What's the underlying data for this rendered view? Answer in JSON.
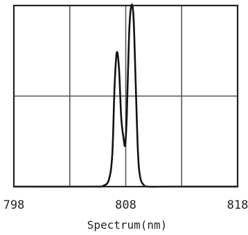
{
  "chart_data": {
    "type": "line",
    "title": "",
    "xlabel": "Spectrum(nm)",
    "ylabel": "",
    "xlim": [
      798,
      818
    ],
    "ylim": [
      0,
      1
    ],
    "x_tick_labels": [
      "798",
      "808",
      "818"
    ],
    "grid": true,
    "legend": "none",
    "series": [
      {
        "x": [
          798,
          805,
          806,
          806.5,
          806.8,
          807.0,
          807.2,
          807.4,
          807.6,
          807.8,
          807.95,
          808.1,
          808.3,
          808.5,
          808.7,
          808.9,
          809.1,
          809.3,
          809.6,
          810,
          812,
          818
        ],
        "y": [
          0,
          0,
          0.005,
          0.04,
          0.18,
          0.55,
          0.74,
          0.65,
          0.38,
          0.27,
          0.23,
          0.4,
          0.84,
          1.0,
          0.93,
          0.55,
          0.18,
          0.05,
          0.01,
          0,
          0,
          0
        ]
      }
    ],
    "colors": {
      "line": "#111111",
      "grid": "#555555",
      "frame": "#222222"
    }
  }
}
